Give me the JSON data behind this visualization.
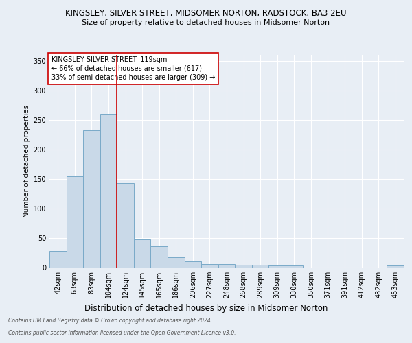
{
  "title": "KINGSLEY, SILVER STREET, MIDSOMER NORTON, RADSTOCK, BA3 2EU",
  "subtitle": "Size of property relative to detached houses in Midsomer Norton",
  "xlabel": "Distribution of detached houses by size in Midsomer Norton",
  "ylabel": "Number of detached properties",
  "footer_line1": "Contains HM Land Registry data © Crown copyright and database right 2024.",
  "footer_line2": "Contains public sector information licensed under the Open Government Licence v3.0.",
  "categories": [
    "42sqm",
    "63sqm",
    "83sqm",
    "104sqm",
    "124sqm",
    "145sqm",
    "165sqm",
    "186sqm",
    "206sqm",
    "227sqm",
    "248sqm",
    "268sqm",
    "289sqm",
    "309sqm",
    "330sqm",
    "350sqm",
    "371sqm",
    "391sqm",
    "412sqm",
    "432sqm",
    "453sqm"
  ],
  "values": [
    28,
    154,
    232,
    260,
    143,
    48,
    36,
    18,
    10,
    6,
    6,
    5,
    5,
    4,
    3,
    0,
    0,
    0,
    0,
    0,
    4
  ],
  "bar_color": "#c9d9e8",
  "bar_edge_color": "#7aaac8",
  "background_color": "#e8eef5",
  "grid_color": "#ffffff",
  "annotation_box_text": "KINGSLEY SILVER STREET: 119sqm\n← 66% of detached houses are smaller (617)\n33% of semi-detached houses are larger (309) →",
  "annotation_box_color": "#ffffff",
  "annotation_box_edge_color": "#cc0000",
  "vline_x_index": 3.5,
  "vline_color": "#cc0000",
  "ylim": [
    0,
    360
  ],
  "yticks": [
    0,
    50,
    100,
    150,
    200,
    250,
    300,
    350
  ],
  "title_fontsize": 8.5,
  "subtitle_fontsize": 8.0,
  "ylabel_fontsize": 7.5,
  "xlabel_fontsize": 8.5,
  "tick_fontsize": 7,
  "annotation_fontsize": 7,
  "footer_fontsize": 5.5
}
